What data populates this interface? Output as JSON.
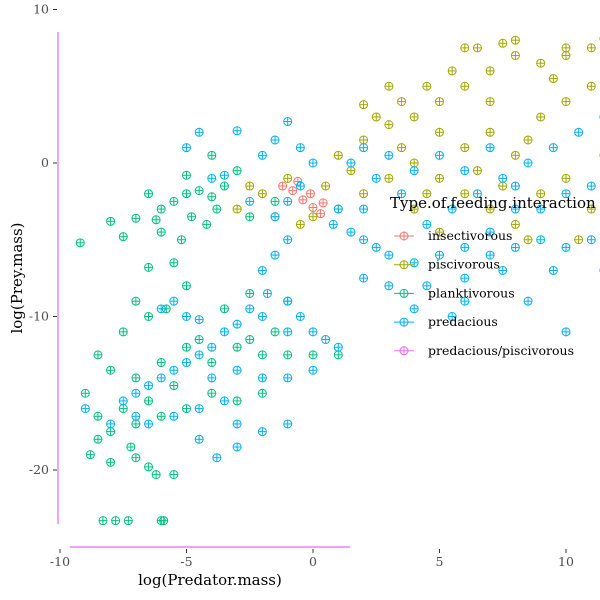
{
  "chart_data": {
    "type": "scatter",
    "xlabel": "log(Predator.mass)",
    "ylabel": "log(Prey.mass)",
    "xlim": [
      -10,
      13.8
    ],
    "ylim": [
      -25,
      10.5
    ],
    "x_ticks": [
      -10,
      -5,
      0,
      5,
      10
    ],
    "y_ticks": [
      10,
      0,
      -10,
      -20
    ],
    "grid": false,
    "marker": "circle-plus",
    "legend": {
      "title": "Type.of.feeding.interaction",
      "position": "right"
    },
    "series": [
      {
        "name": "insectivorous",
        "color": "#F8766D",
        "points": [
          [
            -1.2,
            -1.5
          ],
          [
            -0.8,
            -1.8
          ],
          [
            -0.4,
            -2.4
          ],
          [
            0.0,
            -2.9
          ],
          [
            0.3,
            -3.3
          ],
          [
            -0.1,
            -2.0
          ],
          [
            0.4,
            -2.6
          ],
          [
            -0.6,
            -1.2
          ]
        ]
      },
      {
        "name": "piscivorous",
        "color": "#A3A500",
        "points": [
          [
            1.0,
            0.5
          ],
          [
            2.0,
            1.5
          ],
          [
            3.0,
            2.5
          ],
          [
            4.0,
            3.0
          ],
          [
            5.0,
            4.0
          ],
          [
            6.0,
            5.0
          ],
          [
            7.0,
            6.0
          ],
          [
            8.0,
            7.0
          ],
          [
            9.0,
            6.5
          ],
          [
            10.0,
            7.0
          ],
          [
            11.0,
            7.5
          ],
          [
            12.0,
            8.0
          ],
          [
            12.5,
            8.2
          ],
          [
            11.5,
            8.1
          ],
          [
            6.5,
            7.5
          ],
          [
            7.5,
            7.8
          ],
          [
            5.5,
            6.0
          ],
          [
            4.5,
            5.0
          ],
          [
            3.5,
            4.0
          ],
          [
            4.0,
            0.0
          ],
          [
            5.0,
            -1.0
          ],
          [
            6.0,
            -2.0
          ],
          [
            7.0,
            -3.0
          ],
          [
            8.0,
            -4.0
          ],
          [
            9.0,
            -2.0
          ],
          [
            10.0,
            -1.0
          ],
          [
            11.0,
            -3.0
          ],
          [
            12.0,
            -4.0
          ],
          [
            6.0,
            1.0
          ],
          [
            7.0,
            2.0
          ],
          [
            8.0,
            0.5
          ],
          [
            9.0,
            3.0
          ],
          [
            10.0,
            4.0
          ],
          [
            11.0,
            5.0
          ],
          [
            3.0,
            -1.0
          ],
          [
            2.0,
            -2.0
          ],
          [
            1.5,
            -0.5
          ],
          [
            0.5,
            -1.5
          ],
          [
            -1.0,
            -1.0
          ],
          [
            -2.0,
            -2.0
          ],
          [
            -3.0,
            -3.0
          ],
          [
            -2.5,
            -1.5
          ],
          [
            -1.5,
            -3.5
          ],
          [
            -0.5,
            -4.0
          ],
          [
            4.0,
            -3.0
          ],
          [
            5.0,
            -4.5
          ],
          [
            8.5,
            -5.0
          ],
          [
            10.5,
            -5.0
          ],
          [
            12.2,
            -4.5
          ],
          [
            9.5,
            5.5
          ],
          [
            7.0,
            4.0
          ],
          [
            5.0,
            2.0
          ],
          [
            2.5,
            3.0
          ],
          [
            3.5,
            1.0
          ],
          [
            1.0,
            -3.0
          ],
          [
            0.0,
            -3.5
          ],
          [
            6.5,
            -0.5
          ],
          [
            8.5,
            1.5
          ],
          [
            11.5,
            0.5
          ],
          [
            12.5,
            2.0
          ],
          [
            10.0,
            7.5
          ],
          [
            8.0,
            8.0
          ],
          [
            6.0,
            7.5
          ],
          [
            3.0,
            5.0
          ],
          [
            2.0,
            3.8
          ],
          [
            13.0,
            8.2
          ],
          [
            12.8,
            6.0
          ],
          [
            11.8,
            -2.0
          ],
          [
            4.5,
            -2.0
          ],
          [
            7.5,
            -1.5
          ]
        ]
      },
      {
        "name": "planktivorous",
        "color": "#00BF7D",
        "points": [
          [
            -9.2,
            -5.2
          ],
          [
            -8.0,
            -3.8
          ],
          [
            -7.0,
            -3.6
          ],
          [
            -6.0,
            -3.0
          ],
          [
            -5.5,
            -2.5
          ],
          [
            -5.0,
            -2.0
          ],
          [
            -4.5,
            -1.8
          ],
          [
            -4.0,
            -2.2
          ],
          [
            -3.5,
            -1.5
          ],
          [
            -3.0,
            -0.5
          ],
          [
            -4.0,
            0.5
          ],
          [
            -5.0,
            -0.8
          ],
          [
            -6.5,
            -2.0
          ],
          [
            -7.5,
            -4.8
          ],
          [
            -6.0,
            -4.5
          ],
          [
            -5.2,
            -5.0
          ],
          [
            -4.2,
            -4.0
          ],
          [
            -6.5,
            -6.8
          ],
          [
            -5.5,
            -6.5
          ],
          [
            -7.0,
            -9.0
          ],
          [
            -6.5,
            -10.0
          ],
          [
            -7.5,
            -11.0
          ],
          [
            -8.5,
            -12.5
          ],
          [
            -8.0,
            -13.5
          ],
          [
            -7.0,
            -14.0
          ],
          [
            -6.0,
            -13.0
          ],
          [
            -5.0,
            -12.0
          ],
          [
            -4.0,
            -13.0
          ],
          [
            -3.0,
            -12.0
          ],
          [
            -2.0,
            -12.5
          ],
          [
            -1.0,
            -12.5
          ],
          [
            0.0,
            -12.5
          ],
          [
            1.0,
            -12.5
          ],
          [
            -1.5,
            -11.0
          ],
          [
            -2.5,
            -11.5
          ],
          [
            -4.5,
            -11.5
          ],
          [
            -5.5,
            -14.5
          ],
          [
            -6.5,
            -15.5
          ],
          [
            -7.5,
            -16.0
          ],
          [
            -8.5,
            -16.5
          ],
          [
            -9.0,
            -15.0
          ],
          [
            -8.0,
            -17.5
          ],
          [
            -7.0,
            -17.0
          ],
          [
            -6.0,
            -16.5
          ],
          [
            -5.0,
            -16.0
          ],
          [
            -4.0,
            -15.0
          ],
          [
            -3.0,
            -15.5
          ],
          [
            -2.0,
            -15.0
          ],
          [
            -8.8,
            -19.0
          ],
          [
            -8.0,
            -19.5
          ],
          [
            -7.0,
            -19.2
          ],
          [
            -6.5,
            -19.8
          ],
          [
            -6.2,
            -20.3
          ],
          [
            -5.5,
            -20.3
          ],
          [
            -7.2,
            -18.5
          ],
          [
            -8.5,
            -18.0
          ],
          [
            -8.3,
            -23.3
          ],
          [
            -7.8,
            -23.3
          ],
          [
            -7.3,
            -23.3
          ],
          [
            -6.0,
            -23.3
          ],
          [
            -5.9,
            -23.3
          ],
          [
            -5.0,
            -8.0
          ],
          [
            -5.8,
            -9.5
          ],
          [
            -3.5,
            -9.5
          ],
          [
            -2.5,
            -8.5
          ],
          [
            -1.0,
            -9.0
          ],
          [
            -1.5,
            -2.5
          ],
          [
            -2.5,
            -3.5
          ],
          [
            -3.8,
            -3.0
          ],
          [
            -4.8,
            -3.5
          ],
          [
            -6.2,
            -3.7
          ]
        ]
      },
      {
        "name": "predacious",
        "color": "#00B0F6",
        "points": [
          [
            -3.0,
            2.1
          ],
          [
            -1.0,
            2.7
          ],
          [
            -2.0,
            0.5
          ],
          [
            -1.5,
            1.5
          ],
          [
            -0.5,
            1.0
          ],
          [
            0.0,
            0.0
          ],
          [
            -0.5,
            -1.5
          ],
          [
            -1.0,
            -2.5
          ],
          [
            -1.5,
            -3.5
          ],
          [
            -1.0,
            -5.0
          ],
          [
            -1.5,
            -6.0
          ],
          [
            -2.0,
            -7.0
          ],
          [
            -1.8,
            -8.5
          ],
          [
            -1.0,
            -9.0
          ],
          [
            -0.5,
            -10.0
          ],
          [
            0.0,
            -11.0
          ],
          [
            0.5,
            -11.5
          ],
          [
            1.0,
            -12.0
          ],
          [
            -2.5,
            -9.5
          ],
          [
            -3.0,
            -10.5
          ],
          [
            -3.5,
            -11.0
          ],
          [
            -4.0,
            -12.0
          ],
          [
            -4.5,
            -12.5
          ],
          [
            -5.0,
            -13.0
          ],
          [
            -5.5,
            -13.5
          ],
          [
            -6.0,
            -14.0
          ],
          [
            -6.5,
            -14.5
          ],
          [
            -7.0,
            -15.0
          ],
          [
            -7.5,
            -15.5
          ],
          [
            -5.0,
            -10.0
          ],
          [
            -5.5,
            -9.0
          ],
          [
            -6.0,
            -9.5
          ],
          [
            -4.0,
            -14.0
          ],
          [
            -3.0,
            -13.5
          ],
          [
            -2.0,
            -14.0
          ],
          [
            -1.0,
            -14.0
          ],
          [
            0.0,
            -13.5
          ],
          [
            -3.5,
            -15.5
          ],
          [
            -4.5,
            -16.0
          ],
          [
            -5.5,
            -16.5
          ],
          [
            -6.5,
            -17.0
          ],
          [
            -2.0,
            -17.5
          ],
          [
            -4.5,
            -18.0
          ],
          [
            -7.0,
            -16.5
          ],
          [
            -8.0,
            -17.0
          ],
          [
            -9.0,
            -16.0
          ],
          [
            -4.5,
            -10.2
          ],
          [
            -2.0,
            -10.0
          ],
          [
            -1.0,
            -11.0
          ],
          [
            0.8,
            -4.0
          ],
          [
            1.0,
            -3.0
          ],
          [
            1.5,
            -4.5
          ],
          [
            2.0,
            -5.0
          ],
          [
            2.5,
            -5.5
          ],
          [
            3.0,
            -6.0
          ],
          [
            4.0,
            -6.5
          ],
          [
            5.0,
            -6.0
          ],
          [
            6.0,
            -5.5
          ],
          [
            7.0,
            -6.0
          ],
          [
            8.0,
            -5.5
          ],
          [
            9.0,
            -5.0
          ],
          [
            10.0,
            -5.5
          ],
          [
            11.0,
            -5.0
          ],
          [
            12.0,
            -4.0
          ],
          [
            12.5,
            -3.0
          ],
          [
            13.0,
            -2.0
          ],
          [
            12.8,
            -1.0
          ],
          [
            12.5,
            1.0
          ],
          [
            12.8,
            2.5
          ],
          [
            12.5,
            4.0
          ],
          [
            12.8,
            5.0
          ],
          [
            12.5,
            6.0
          ],
          [
            12.8,
            7.0
          ],
          [
            12.5,
            8.0
          ],
          [
            12.6,
            8.3
          ],
          [
            11.5,
            3.0
          ],
          [
            10.5,
            2.0
          ],
          [
            9.5,
            1.0
          ],
          [
            8.5,
            0.0
          ],
          [
            7.5,
            -1.0
          ],
          [
            6.5,
            -2.0
          ],
          [
            5.5,
            -3.0
          ],
          [
            4.5,
            -4.0
          ],
          [
            3.5,
            -2.0
          ],
          [
            2.5,
            -1.0
          ],
          [
            1.5,
            0.0
          ],
          [
            2.0,
            1.0
          ],
          [
            3.0,
            0.5
          ],
          [
            4.0,
            -0.5
          ],
          [
            5.0,
            0.5
          ],
          [
            6.0,
            -0.5
          ],
          [
            7.0,
            1.0
          ],
          [
            8.0,
            -1.5
          ],
          [
            9.0,
            -3.0
          ],
          [
            10.0,
            -2.0
          ],
          [
            11.0,
            -1.5
          ],
          [
            6.0,
            -9.0
          ],
          [
            5.5,
            -10.0
          ],
          [
            4.0,
            -9.5
          ],
          [
            3.0,
            -8.0
          ],
          [
            2.0,
            -7.5
          ],
          [
            8.5,
            -9.0
          ],
          [
            9.5,
            -7.0
          ],
          [
            11.5,
            -7.0
          ],
          [
            12.0,
            -6.0
          ],
          [
            12.5,
            -5.0
          ],
          [
            10.0,
            -11.0
          ],
          [
            4.5,
            -8.0
          ],
          [
            6.0,
            -7.5
          ],
          [
            7.5,
            -7.0
          ],
          [
            8.0,
            -3.0
          ],
          [
            7.0,
            -4.5
          ],
          [
            2.0,
            -3.0
          ],
          [
            -3.5,
            -0.8
          ],
          [
            -2.5,
            -2.5
          ],
          [
            -4.5,
            2.0
          ],
          [
            -5.0,
            1.0
          ],
          [
            -4.0,
            -1.0
          ],
          [
            -3.8,
            -19.2
          ],
          [
            -3.0,
            -18.5
          ],
          [
            -1.0,
            -17.0
          ],
          [
            -3.0,
            -17.0
          ]
        ]
      },
      {
        "name": "predacious/piscivorous",
        "color": "#E76BF3",
        "points": []
      }
    ]
  }
}
